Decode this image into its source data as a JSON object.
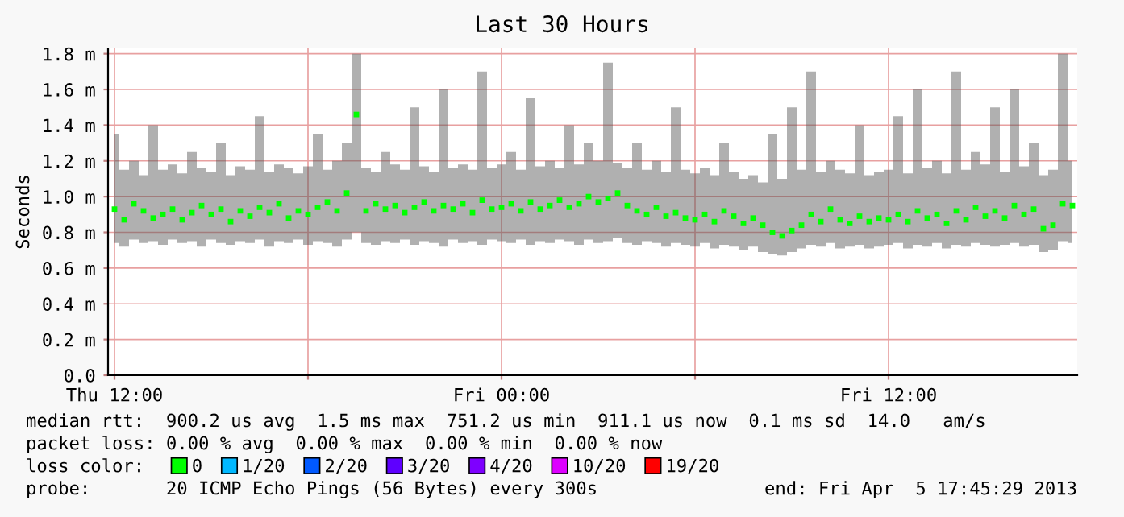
{
  "chart_data": {
    "type": "scatter",
    "title": "Last 30 Hours",
    "ylabel": "Seconds",
    "xlim": [
      "2013-04-04T11:48",
      "2013-04-05T17:51"
    ],
    "ylim": [
      0,
      1.83
    ],
    "xticks": [
      {
        "value": "2013-04-04T12:00",
        "label": "Thu 12:00"
      },
      {
        "value": "2013-04-04T18:00",
        "label": null
      },
      {
        "value": "2013-04-05T00:00",
        "label": "Fri 00:00"
      },
      {
        "value": "2013-04-05T06:00",
        "label": null
      },
      {
        "value": "2013-04-05T12:00",
        "label": "Fri 12:00"
      }
    ],
    "yticks": [
      {
        "value": 0,
        "label": "0.0"
      },
      {
        "value": 0.2,
        "label": "0.2 m"
      },
      {
        "value": 0.4,
        "label": "0.4 m"
      },
      {
        "value": 0.6,
        "label": "0.6 m"
      },
      {
        "value": 0.8,
        "label": "0.8 m"
      },
      {
        "value": 1.0,
        "label": "1.0 m"
      },
      {
        "value": 1.2,
        "label": "1.2 m"
      },
      {
        "value": 1.4,
        "label": "1.4 m"
      },
      {
        "value": 1.6,
        "label": "1.6 m"
      },
      {
        "value": 1.8,
        "label": "1.8 m"
      }
    ],
    "grid": true,
    "marker": "square",
    "legend": "bottom",
    "legend_title": "loss color:",
    "x": [
      "2013-04-04T12:00",
      "2013-04-04T12:18",
      "2013-04-04T12:36",
      "2013-04-04T12:54",
      "2013-04-04T13:12",
      "2013-04-04T13:30",
      "2013-04-04T13:48",
      "2013-04-04T14:06",
      "2013-04-04T14:24",
      "2013-04-04T14:42",
      "2013-04-04T15:00",
      "2013-04-04T15:18",
      "2013-04-04T15:36",
      "2013-04-04T15:54",
      "2013-04-04T16:12",
      "2013-04-04T16:30",
      "2013-04-04T16:48",
      "2013-04-04T17:06",
      "2013-04-04T17:24",
      "2013-04-04T17:42",
      "2013-04-04T18:00",
      "2013-04-04T18:18",
      "2013-04-04T18:36",
      "2013-04-04T18:54",
      "2013-04-04T19:12",
      "2013-04-04T19:30",
      "2013-04-04T19:48",
      "2013-04-04T20:06",
      "2013-04-04T20:24",
      "2013-04-04T20:42",
      "2013-04-04T21:00",
      "2013-04-04T21:18",
      "2013-04-04T21:36",
      "2013-04-04T21:54",
      "2013-04-04T22:12",
      "2013-04-04T22:30",
      "2013-04-04T22:48",
      "2013-04-04T23:06",
      "2013-04-04T23:24",
      "2013-04-04T23:42",
      "2013-04-05T00:00",
      "2013-04-05T00:18",
      "2013-04-05T00:36",
      "2013-04-05T00:54",
      "2013-04-05T01:12",
      "2013-04-05T01:30",
      "2013-04-05T01:48",
      "2013-04-05T02:06",
      "2013-04-05T02:24",
      "2013-04-05T02:42",
      "2013-04-05T03:00",
      "2013-04-05T03:18",
      "2013-04-05T03:36",
      "2013-04-05T03:54",
      "2013-04-05T04:12",
      "2013-04-05T04:30",
      "2013-04-05T04:48",
      "2013-04-05T05:06",
      "2013-04-05T05:24",
      "2013-04-05T05:42",
      "2013-04-05T06:00",
      "2013-04-05T06:18",
      "2013-04-05T06:36",
      "2013-04-05T06:54",
      "2013-04-05T07:12",
      "2013-04-05T07:30",
      "2013-04-05T07:48",
      "2013-04-05T08:06",
      "2013-04-05T08:24",
      "2013-04-05T08:42",
      "2013-04-05T09:00",
      "2013-04-05T09:18",
      "2013-04-05T09:36",
      "2013-04-05T09:54",
      "2013-04-05T10:12",
      "2013-04-05T10:30",
      "2013-04-05T10:48",
      "2013-04-05T11:06",
      "2013-04-05T11:24",
      "2013-04-05T11:42",
      "2013-04-05T12:00",
      "2013-04-05T12:18",
      "2013-04-05T12:36",
      "2013-04-05T12:54",
      "2013-04-05T13:12",
      "2013-04-05T13:30",
      "2013-04-05T13:48",
      "2013-04-05T14:06",
      "2013-04-05T14:24",
      "2013-04-05T14:42",
      "2013-04-05T15:00",
      "2013-04-05T15:18",
      "2013-04-05T15:36",
      "2013-04-05T15:54",
      "2013-04-05T16:12",
      "2013-04-05T16:30",
      "2013-04-05T16:48",
      "2013-04-05T17:06",
      "2013-04-05T17:24",
      "2013-04-05T17:42"
    ],
    "series": [
      {
        "name": "0",
        "color": "#00ff00",
        "values": [
          0.93,
          0.87,
          0.96,
          0.92,
          0.88,
          0.9,
          0.93,
          0.87,
          0.91,
          0.95,
          0.9,
          0.93,
          0.86,
          0.92,
          0.89,
          0.94,
          0.91,
          0.96,
          0.88,
          0.92,
          0.9,
          0.94,
          0.97,
          0.92,
          1.02,
          1.46,
          0.92,
          0.96,
          0.93,
          0.95,
          0.91,
          0.94,
          0.97,
          0.92,
          0.95,
          0.93,
          0.96,
          0.91,
          0.98,
          0.93,
          0.94,
          0.96,
          0.92,
          0.97,
          0.93,
          0.95,
          0.98,
          0.94,
          0.96,
          1.0,
          0.97,
          0.99,
          1.02,
          0.95,
          0.92,
          0.9,
          0.94,
          0.89,
          0.91,
          0.88,
          0.87,
          0.9,
          0.86,
          0.92,
          0.89,
          0.85,
          0.88,
          0.84,
          0.8,
          0.78,
          0.81,
          0.84,
          0.9,
          0.86,
          0.93,
          0.87,
          0.85,
          0.89,
          0.86,
          0.88,
          0.87,
          0.9,
          0.86,
          0.92,
          0.88,
          0.9,
          0.85,
          0.92,
          0.87,
          0.94,
          0.89,
          0.92,
          0.88,
          0.95,
          0.9,
          0.93,
          0.82,
          0.84,
          0.96,
          0.95
        ],
        "lower": [
          0.74,
          0.72,
          0.76,
          0.74,
          0.75,
          0.73,
          0.76,
          0.74,
          0.75,
          0.72,
          0.76,
          0.74,
          0.73,
          0.75,
          0.74,
          0.76,
          0.72,
          0.75,
          0.74,
          0.76,
          0.73,
          0.75,
          0.74,
          0.72,
          0.76,
          0.8,
          0.74,
          0.73,
          0.75,
          0.74,
          0.76,
          0.73,
          0.75,
          0.74,
          0.72,
          0.76,
          0.74,
          0.75,
          0.73,
          0.76,
          0.75,
          0.74,
          0.76,
          0.73,
          0.75,
          0.74,
          0.76,
          0.75,
          0.73,
          0.76,
          0.74,
          0.75,
          0.77,
          0.74,
          0.73,
          0.75,
          0.74,
          0.72,
          0.74,
          0.73,
          0.72,
          0.74,
          0.71,
          0.73,
          0.72,
          0.7,
          0.72,
          0.69,
          0.68,
          0.67,
          0.69,
          0.71,
          0.73,
          0.72,
          0.74,
          0.71,
          0.72,
          0.73,
          0.71,
          0.72,
          0.73,
          0.74,
          0.71,
          0.73,
          0.72,
          0.74,
          0.71,
          0.73,
          0.72,
          0.74,
          0.73,
          0.72,
          0.73,
          0.74,
          0.72,
          0.73,
          0.69,
          0.7,
          0.75,
          0.74
        ],
        "upper": [
          1.35,
          1.15,
          1.2,
          1.12,
          1.4,
          1.15,
          1.18,
          1.13,
          1.25,
          1.16,
          1.14,
          1.3,
          1.12,
          1.17,
          1.15,
          1.45,
          1.14,
          1.18,
          1.16,
          1.13,
          1.17,
          1.35,
          1.15,
          1.2,
          1.3,
          1.8,
          1.16,
          1.14,
          1.25,
          1.18,
          1.15,
          1.5,
          1.17,
          1.14,
          1.6,
          1.16,
          1.18,
          1.15,
          1.7,
          1.16,
          1.18,
          1.25,
          1.15,
          1.55,
          1.17,
          1.2,
          1.16,
          1.4,
          1.18,
          1.3,
          1.2,
          1.75,
          1.19,
          1.16,
          1.3,
          1.15,
          1.2,
          1.14,
          1.5,
          1.15,
          1.13,
          1.16,
          1.12,
          1.3,
          1.14,
          1.1,
          1.12,
          1.08,
          1.35,
          1.1,
          1.5,
          1.15,
          1.7,
          1.14,
          1.2,
          1.15,
          1.13,
          1.4,
          1.12,
          1.14,
          1.15,
          1.45,
          1.13,
          1.6,
          1.16,
          1.2,
          1.13,
          1.7,
          1.15,
          1.25,
          1.18,
          1.5,
          1.14,
          1.6,
          1.17,
          1.3,
          1.12,
          1.15,
          1.8,
          1.2
        ]
      },
      {
        "name": "1/20",
        "color": "#00b8ff",
        "values": [
          null,
          null,
          null,
          null,
          null,
          null,
          null,
          null,
          null,
          null,
          null,
          null,
          null,
          null,
          null,
          null,
          null,
          null,
          null,
          null,
          null,
          null,
          null,
          null,
          null,
          null,
          null,
          null,
          null,
          null,
          null,
          null,
          null,
          null,
          null,
          null,
          null,
          null,
          null,
          null,
          null,
          null,
          null,
          null,
          null,
          null,
          null,
          null,
          null,
          null,
          null,
          null,
          null,
          null,
          null,
          null,
          null,
          null,
          null,
          null,
          null,
          null,
          null,
          null,
          null,
          null,
          null,
          null,
          null,
          null,
          null,
          null,
          null,
          null,
          null,
          null,
          null,
          null,
          null,
          null,
          null,
          null,
          null,
          null,
          null,
          null,
          null,
          null,
          null,
          null,
          null,
          null,
          null,
          null,
          null,
          null,
          null,
          null,
          null,
          null
        ]
      },
      {
        "name": "2/20",
        "color": "#0059ff",
        "values": [
          null,
          null,
          null,
          null,
          null,
          null,
          null,
          null,
          null,
          null,
          null,
          null,
          null,
          null,
          null,
          null,
          null,
          null,
          null,
          null,
          null,
          null,
          null,
          null,
          null,
          null,
          null,
          null,
          null,
          null,
          null,
          null,
          null,
          null,
          null,
          null,
          null,
          null,
          null,
          null,
          null,
          null,
          null,
          null,
          null,
          null,
          null,
          null,
          null,
          null,
          null,
          null,
          null,
          null,
          null,
          null,
          null,
          null,
          null,
          null,
          null,
          null,
          null,
          null,
          null,
          null,
          null,
          null,
          null,
          null,
          null,
          null,
          null,
          null,
          null,
          null,
          null,
          null,
          null,
          null,
          null,
          null,
          null,
          null,
          null,
          null,
          null,
          null,
          null,
          null,
          null,
          null,
          null,
          null,
          null,
          null,
          null,
          null,
          null,
          null
        ]
      },
      {
        "name": "3/20",
        "color": "#5e00ff",
        "values": [
          null,
          null,
          null,
          null,
          null,
          null,
          null,
          null,
          null,
          null,
          null,
          null,
          null,
          null,
          null,
          null,
          null,
          null,
          null,
          null,
          null,
          null,
          null,
          null,
          null,
          null,
          null,
          null,
          null,
          null,
          null,
          null,
          null,
          null,
          null,
          null,
          null,
          null,
          null,
          null,
          null,
          null,
          null,
          null,
          null,
          null,
          null,
          null,
          null,
          null,
          null,
          null,
          null,
          null,
          null,
          null,
          null,
          null,
          null,
          null,
          null,
          null,
          null,
          null,
          null,
          null,
          null,
          null,
          null,
          null,
          null,
          null,
          null,
          null,
          null,
          null,
          null,
          null,
          null,
          null,
          null,
          null,
          null,
          null,
          null,
          null,
          null,
          null,
          null,
          null,
          null,
          null,
          null,
          null,
          null,
          null,
          null,
          null,
          null,
          null
        ]
      },
      {
        "name": "4/20",
        "color": "#7e00ff",
        "values": [
          null,
          null,
          null,
          null,
          null,
          null,
          null,
          null,
          null,
          null,
          null,
          null,
          null,
          null,
          null,
          null,
          null,
          null,
          null,
          null,
          null,
          null,
          null,
          null,
          null,
          null,
          null,
          null,
          null,
          null,
          null,
          null,
          null,
          null,
          null,
          null,
          null,
          null,
          null,
          null,
          null,
          null,
          null,
          null,
          null,
          null,
          null,
          null,
          null,
          null,
          null,
          null,
          null,
          null,
          null,
          null,
          null,
          null,
          null,
          null,
          null,
          null,
          null,
          null,
          null,
          null,
          null,
          null,
          null,
          null,
          null,
          null,
          null,
          null,
          null,
          null,
          null,
          null,
          null,
          null,
          null,
          null,
          null,
          null,
          null,
          null,
          null,
          null,
          null,
          null,
          null,
          null,
          null,
          null,
          null,
          null,
          null,
          null,
          null,
          null
        ]
      },
      {
        "name": "10/20",
        "color": "#dd00ff",
        "values": [
          null,
          null,
          null,
          null,
          null,
          null,
          null,
          null,
          null,
          null,
          null,
          null,
          null,
          null,
          null,
          null,
          null,
          null,
          null,
          null,
          null,
          null,
          null,
          null,
          null,
          null,
          null,
          null,
          null,
          null,
          null,
          null,
          null,
          null,
          null,
          null,
          null,
          null,
          null,
          null,
          null,
          null,
          null,
          null,
          null,
          null,
          null,
          null,
          null,
          null,
          null,
          null,
          null,
          null,
          null,
          null,
          null,
          null,
          null,
          null,
          null,
          null,
          null,
          null,
          null,
          null,
          null,
          null,
          null,
          null,
          null,
          null,
          null,
          null,
          null,
          null,
          null,
          null,
          null,
          null,
          null,
          null,
          null,
          null,
          null,
          null,
          null,
          null,
          null,
          null,
          null,
          null,
          null,
          null,
          null,
          null,
          null,
          null,
          null,
          null
        ]
      },
      {
        "name": "19/20",
        "color": "#ff0000",
        "values": [
          null,
          null,
          null,
          null,
          null,
          null,
          null,
          null,
          null,
          null,
          null,
          null,
          null,
          null,
          null,
          null,
          null,
          null,
          null,
          null,
          null,
          null,
          null,
          null,
          null,
          null,
          null,
          null,
          null,
          null,
          null,
          null,
          null,
          null,
          null,
          null,
          null,
          null,
          null,
          null,
          null,
          null,
          null,
          null,
          null,
          null,
          null,
          null,
          null,
          null,
          null,
          null,
          null,
          null,
          null,
          null,
          null,
          null,
          null,
          null,
          null,
          null,
          null,
          null,
          null,
          null,
          null,
          null,
          null,
          null,
          null,
          null,
          null,
          null,
          null,
          null,
          null,
          null,
          null,
          null,
          null,
          null,
          null,
          null,
          null,
          null,
          null,
          null,
          null,
          null,
          null,
          null,
          null,
          null,
          null,
          null,
          null,
          null,
          null,
          null
        ]
      }
    ],
    "annotations": [
      "median rtt:  900.2 us avg  1.5 ms max  751.2 us min  911.1 us now  0.1 ms sd  14.0   am/s",
      "packet loss: 0.00 % avg  0.00 % max  0.00 % min  0.00 % now",
      "probe:       20 ICMP Echo Pings (56 Bytes) every 300s",
      "end: Fri Apr  5 17:45:29 2013"
    ]
  }
}
